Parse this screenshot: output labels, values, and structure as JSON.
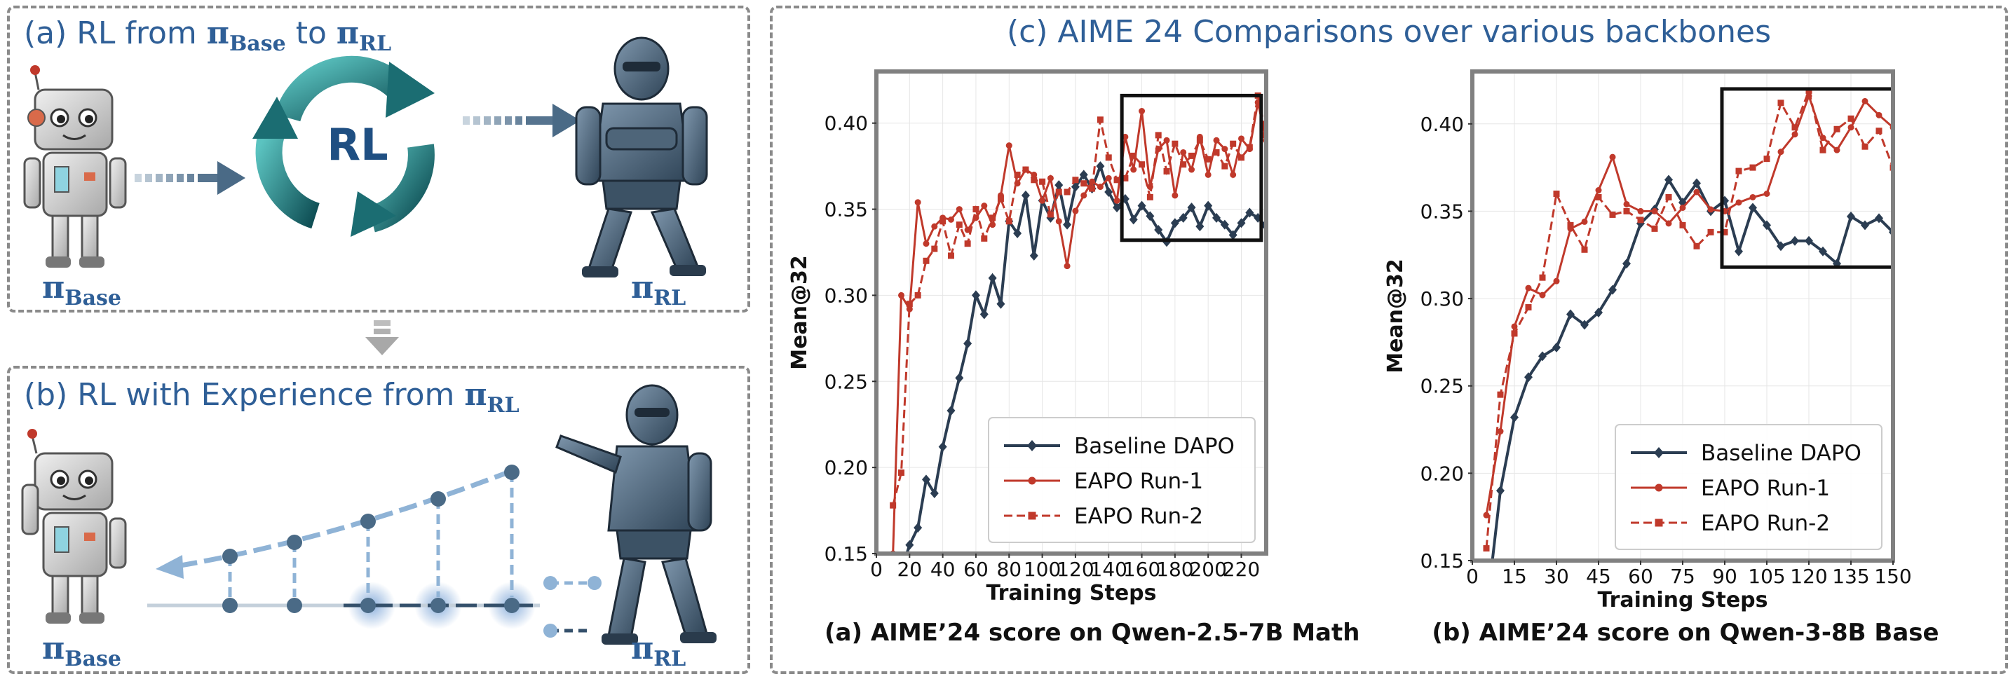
{
  "panel_a": {
    "title_prefix": "(a) RL from ",
    "title_from": "π",
    "title_from_sub": "Base",
    "title_mid": " to ",
    "title_to": "π",
    "title_to_sub": "RL",
    "cycle_label": "RL",
    "base_label": "π",
    "base_label_sub": "Base",
    "rl_label": "π",
    "rl_label_sub": "RL"
  },
  "panel_b": {
    "title_prefix": "(b) RL with Experience from ",
    "title_pi": "π",
    "title_pi_sub": "RL",
    "base_label": "π",
    "base_label_sub": "Base",
    "rl_label": "π",
    "rl_label_sub": "RL"
  },
  "panel_c": {
    "title": "(c) AIME 24 Comparisons over various backbones"
  },
  "colors": {
    "baseline": "#2b3d52",
    "eapo": "#c0392b",
    "accent_blue": "#2f5f97"
  },
  "chart_data": [
    {
      "type": "line",
      "caption": "(a) AIME’24 score on Qwen-2.5-7B Math",
      "xlabel": "Training Steps",
      "ylabel": "Mean@32",
      "xlim": [
        0,
        235
      ],
      "ylim": [
        0.15,
        0.43
      ],
      "xticks": [
        0,
        20,
        40,
        60,
        80,
        100,
        120,
        140,
        160,
        180,
        200,
        220
      ],
      "yticks": [
        0.15,
        0.2,
        0.25,
        0.3,
        0.35,
        0.4
      ],
      "grid": true,
      "legend": "lower-right",
      "zoom_box": {
        "x": [
          148,
          232
        ],
        "y": [
          0.332,
          0.416
        ]
      },
      "series": [
        {
          "name": "Baseline DAPO",
          "marker": "diamond",
          "style": "solid",
          "x": [
            10,
            15,
            20,
            25,
            30,
            35,
            40,
            45,
            50,
            55,
            60,
            65,
            70,
            75,
            80,
            85,
            90,
            95,
            100,
            105,
            110,
            115,
            120,
            125,
            130,
            135,
            140,
            145,
            150,
            155,
            160,
            165,
            170,
            175,
            180,
            185,
            190,
            195,
            200,
            205,
            210,
            215,
            220,
            225,
            230,
            235
          ],
          "y": [
            0.13,
            0.14,
            0.155,
            0.165,
            0.193,
            0.185,
            0.212,
            0.233,
            0.252,
            0.272,
            0.3,
            0.289,
            0.31,
            0.295,
            0.343,
            0.336,
            0.358,
            0.323,
            0.355,
            0.345,
            0.364,
            0.341,
            0.363,
            0.37,
            0.362,
            0.375,
            0.36,
            0.351,
            0.356,
            0.344,
            0.352,
            0.346,
            0.338,
            0.331,
            0.342,
            0.345,
            0.351,
            0.34,
            0.352,
            0.345,
            0.341,
            0.335,
            0.342,
            0.348,
            0.345,
            0.34
          ]
        },
        {
          "name": "EAPO Run-1",
          "marker": "circle",
          "style": "solid",
          "x": [
            10,
            15,
            20,
            25,
            30,
            35,
            40,
            45,
            50,
            55,
            60,
            65,
            70,
            75,
            80,
            85,
            90,
            95,
            100,
            105,
            110,
            115,
            120,
            125,
            130,
            135,
            140,
            145,
            150,
            155,
            160,
            165,
            170,
            175,
            180,
            185,
            190,
            195,
            200,
            205,
            210,
            215,
            220,
            225,
            230,
            235
          ],
          "y": [
            0.15,
            0.3,
            0.292,
            0.354,
            0.33,
            0.34,
            0.345,
            0.344,
            0.35,
            0.338,
            0.345,
            0.352,
            0.341,
            0.358,
            0.387,
            0.365,
            0.373,
            0.37,
            0.355,
            0.368,
            0.343,
            0.317,
            0.349,
            0.358,
            0.366,
            0.363,
            0.368,
            0.355,
            0.392,
            0.373,
            0.407,
            0.363,
            0.385,
            0.39,
            0.358,
            0.383,
            0.373,
            0.392,
            0.37,
            0.39,
            0.385,
            0.37,
            0.391,
            0.385,
            0.412,
            0.39
          ]
        },
        {
          "name": "EAPO Run-2",
          "marker": "square",
          "style": "dashed",
          "x": [
            10,
            15,
            20,
            25,
            30,
            35,
            40,
            45,
            50,
            55,
            60,
            65,
            70,
            75,
            80,
            85,
            90,
            95,
            100,
            105,
            110,
            115,
            120,
            125,
            130,
            135,
            140,
            145,
            150,
            155,
            160,
            165,
            170,
            175,
            180,
            185,
            190,
            195,
            200,
            205,
            210,
            215,
            220,
            225,
            230,
            235
          ],
          "y": [
            0.178,
            0.197,
            0.295,
            0.3,
            0.32,
            0.327,
            0.343,
            0.323,
            0.341,
            0.33,
            0.35,
            0.333,
            0.345,
            0.356,
            0.343,
            0.37,
            0.373,
            0.367,
            0.366,
            0.347,
            0.36,
            0.36,
            0.367,
            0.365,
            0.362,
            0.402,
            0.38,
            0.367,
            0.368,
            0.381,
            0.376,
            0.357,
            0.393,
            0.372,
            0.388,
            0.376,
            0.381,
            0.39,
            0.379,
            0.383,
            0.375,
            0.388,
            0.38,
            0.386,
            0.416,
            0.393
          ]
        }
      ]
    },
    {
      "type": "line",
      "caption": "(b) AIME’24 score on Qwen-3-8B  Base",
      "xlabel": "Training Steps",
      "ylabel": "Mean@32",
      "xlim": [
        0,
        150
      ],
      "ylim": [
        0.15,
        0.43
      ],
      "xticks": [
        0,
        15,
        30,
        45,
        60,
        75,
        90,
        105,
        120,
        135,
        150
      ],
      "yticks": [
        0.15,
        0.2,
        0.25,
        0.3,
        0.35,
        0.4
      ],
      "grid": true,
      "legend": "lower-right",
      "zoom_box": {
        "x": [
          89,
          150
        ],
        "y": [
          0.318,
          0.42
        ]
      },
      "series": [
        {
          "name": "Baseline DAPO",
          "marker": "diamond",
          "style": "solid",
          "x": [
            5,
            10,
            15,
            20,
            25,
            30,
            35,
            40,
            45,
            50,
            55,
            60,
            65,
            70,
            75,
            80,
            85,
            90,
            95,
            100,
            105,
            110,
            115,
            120,
            125,
            130,
            135,
            140,
            145,
            150
          ],
          "y": [
            0.12,
            0.19,
            0.232,
            0.255,
            0.267,
            0.272,
            0.291,
            0.285,
            0.292,
            0.305,
            0.32,
            0.343,
            0.351,
            0.368,
            0.355,
            0.366,
            0.35,
            0.356,
            0.327,
            0.352,
            0.342,
            0.33,
            0.333,
            0.333,
            0.327,
            0.32,
            0.347,
            0.342,
            0.346,
            0.338
          ]
        },
        {
          "name": "EAPO Run-1",
          "marker": "circle",
          "style": "solid",
          "x": [
            5,
            10,
            15,
            20,
            25,
            30,
            35,
            40,
            45,
            50,
            55,
            60,
            65,
            70,
            75,
            80,
            85,
            90,
            95,
            100,
            105,
            110,
            115,
            120,
            125,
            130,
            135,
            140,
            145,
            150
          ],
          "y": [
            0.176,
            0.224,
            0.284,
            0.306,
            0.302,
            0.31,
            0.34,
            0.344,
            0.362,
            0.381,
            0.354,
            0.35,
            0.35,
            0.343,
            0.352,
            0.361,
            0.351,
            0.35,
            0.355,
            0.358,
            0.36,
            0.384,
            0.394,
            0.416,
            0.392,
            0.385,
            0.398,
            0.413,
            0.405,
            0.398
          ]
        },
        {
          "name": "EAPO Run-2",
          "marker": "square",
          "style": "dashed",
          "x": [
            5,
            10,
            15,
            20,
            25,
            30,
            35,
            40,
            45,
            50,
            55,
            60,
            65,
            70,
            75,
            80,
            85,
            90,
            95,
            100,
            105,
            110,
            115,
            120,
            125,
            130,
            135,
            140,
            145,
            150
          ],
          "y": [
            0.157,
            0.245,
            0.28,
            0.295,
            0.312,
            0.36,
            0.342,
            0.328,
            0.358,
            0.348,
            0.35,
            0.345,
            0.34,
            0.358,
            0.342,
            0.33,
            0.338,
            0.338,
            0.373,
            0.375,
            0.38,
            0.412,
            0.398,
            0.419,
            0.385,
            0.397,
            0.403,
            0.387,
            0.396,
            0.375
          ]
        }
      ]
    }
  ]
}
